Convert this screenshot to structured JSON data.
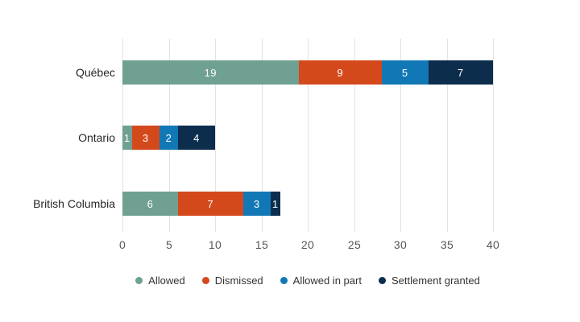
{
  "chart_data": {
    "type": "bar",
    "orientation": "horizontal-stacked",
    "categories": [
      "Québec",
      "Ontario",
      "British Columbia"
    ],
    "series": [
      {
        "name": "Allowed",
        "color": "#6FA092",
        "values": [
          19,
          1,
          6
        ]
      },
      {
        "name": "Dismissed",
        "color": "#D4491B",
        "values": [
          9,
          3,
          7
        ]
      },
      {
        "name": "Allowed in part",
        "color": "#1278B5",
        "values": [
          5,
          2,
          3
        ]
      },
      {
        "name": "Settlement granted",
        "color": "#0D2D4D",
        "values": [
          7,
          4,
          1
        ]
      }
    ],
    "totals": [
      40,
      10,
      17
    ],
    "xlim": [
      0,
      40
    ],
    "xticks": [
      0,
      5,
      10,
      15,
      20,
      25,
      30,
      35,
      40
    ],
    "grid": "vertical-only",
    "legend_position": "bottom"
  },
  "colors": {
    "background": "#FFFFFF",
    "gridline": "#E2E2E2",
    "tick_label": "#575757",
    "category_label": "#262626",
    "value_label": "#FFFFFF",
    "legend_label": "#333333"
  }
}
